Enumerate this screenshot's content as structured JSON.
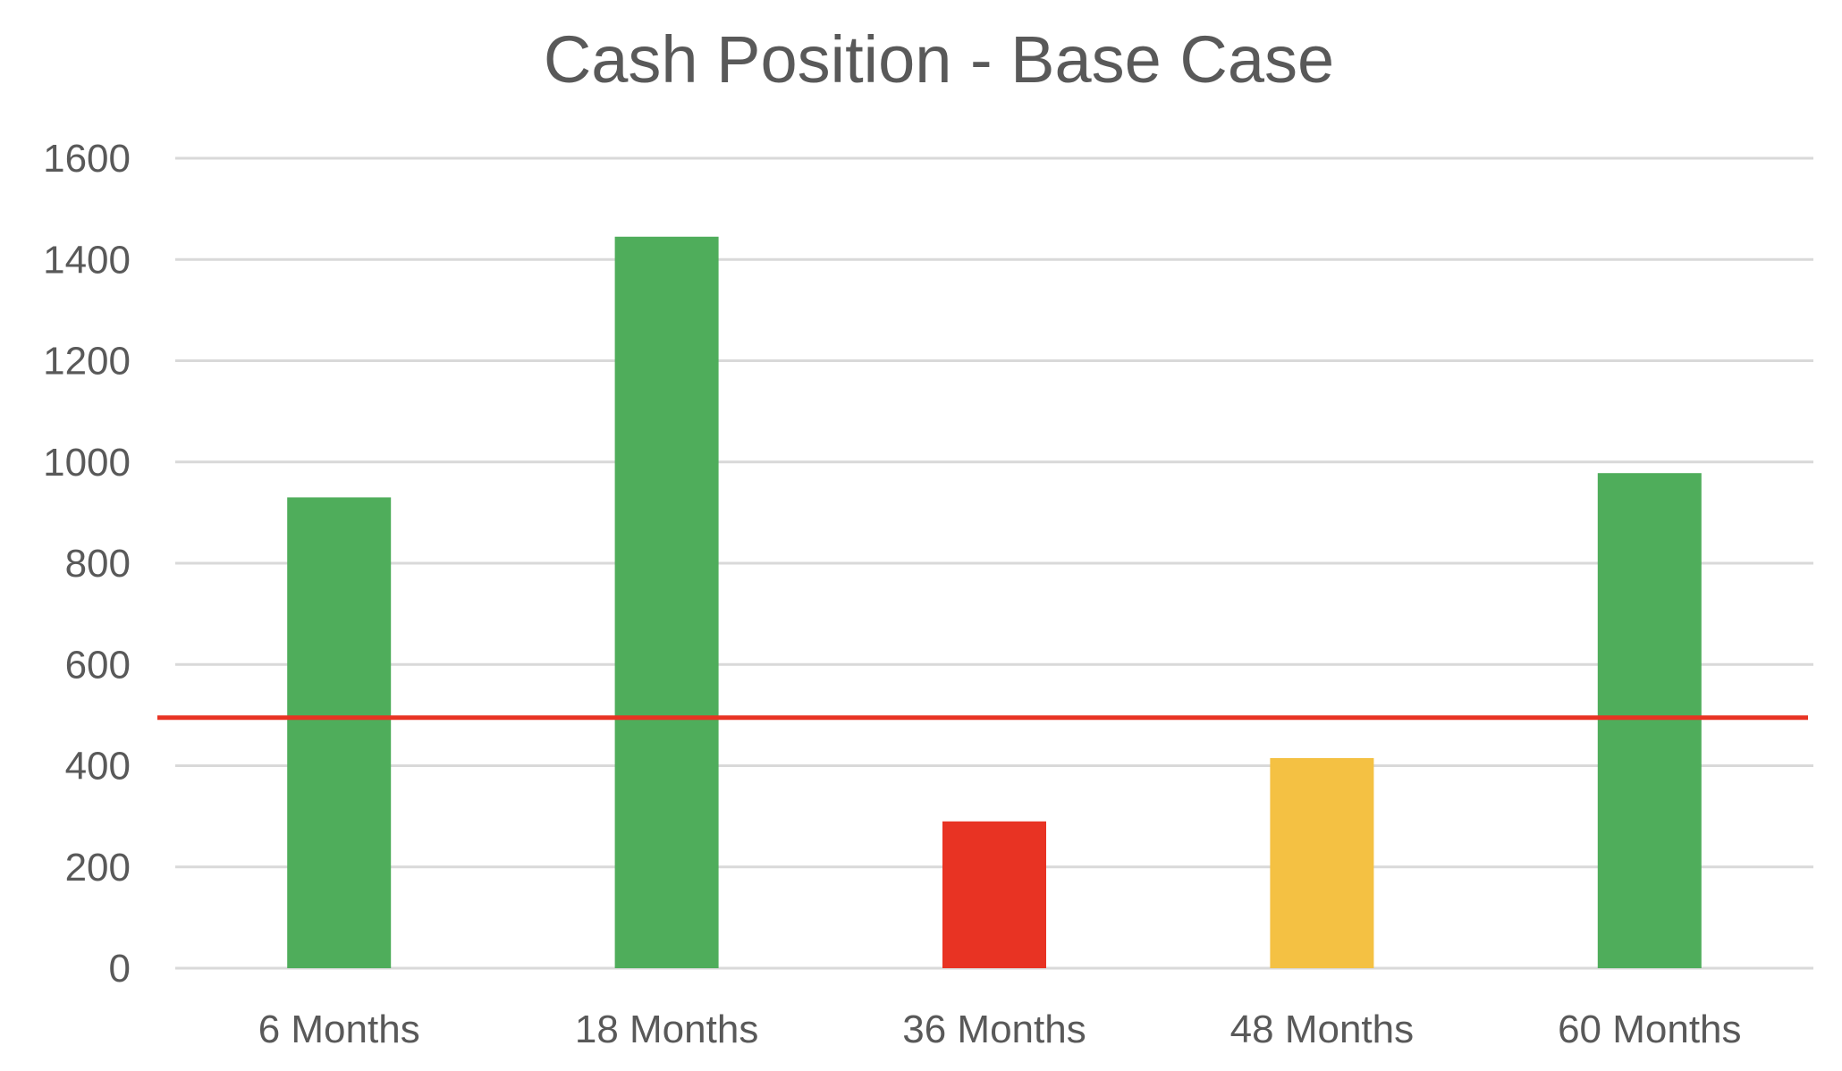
{
  "chart_data": {
    "type": "bar",
    "title": "Cash Position - Base Case",
    "xlabel": "",
    "ylabel": "",
    "categories": [
      "6 Months",
      "18 Months",
      "36 Months",
      "48 Months",
      "60 Months"
    ],
    "values": [
      930,
      1445,
      290,
      415,
      978
    ],
    "bar_colors": [
      "#4fad5b",
      "#4fad5b",
      "#e83323",
      "#f4c143",
      "#4fad5b"
    ],
    "ylim": [
      0,
      1600
    ],
    "yticks": [
      0,
      200,
      400,
      600,
      800,
      1000,
      1200,
      1400,
      1600
    ],
    "grid": true,
    "reference_line": {
      "value": 495,
      "color": "#e83323"
    },
    "legend": "none"
  },
  "colors": {
    "background": "#ffffff",
    "text": "#595959",
    "gridline": "#d9d9d9"
  }
}
